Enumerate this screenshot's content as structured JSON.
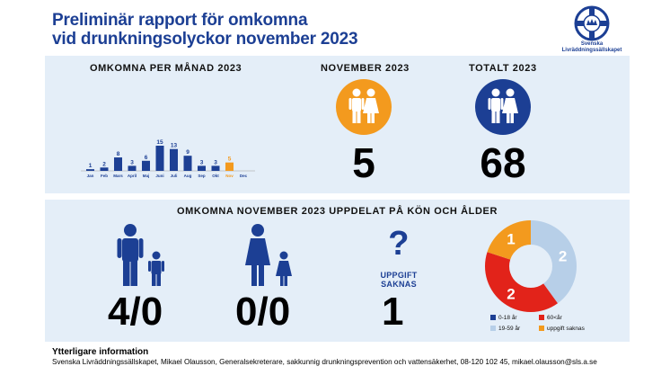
{
  "header": {
    "title_line1": "Preliminär rapport för omkomna",
    "title_line2": "vid drunkningsolyckor november 2023",
    "logo_line1": "Svenska",
    "logo_line2": "Livräddningssällskapet"
  },
  "top": {
    "monthly_heading": "OMKOMNA PER MÅNAD 2023",
    "november_heading": "NOVEMBER 2023",
    "total_heading": "TOTALT 2023",
    "november_value": "5",
    "total_value": "68"
  },
  "bottom": {
    "heading": "OMKOMNA NOVEMBER 2023 UPPDELAT PÅ KÖN OCH ÅLDER",
    "male_ratio": "4/0",
    "female_ratio": "0/0",
    "unknown_symbol": "?",
    "unknown_line1": "UPPGIFT",
    "unknown_line2": "SAKNAS",
    "unknown_value": "1"
  },
  "colors": {
    "navy": "#1c3f94",
    "orange": "#f39a1e",
    "light_blue": "#b7cfe8",
    "red": "#e2231a",
    "panel": "#e4eef8"
  },
  "chart_data": [
    {
      "type": "bar",
      "title": "OMKOMNA PER MÅNAD 2023",
      "categories": [
        "Jan",
        "Feb",
        "Mars",
        "April",
        "Maj",
        "Juni",
        "Juli",
        "Aug",
        "Sep",
        "Okt",
        "Nov",
        "Dec"
      ],
      "values": [
        1,
        2,
        8,
        3,
        6,
        15,
        13,
        9,
        3,
        3,
        5,
        null
      ],
      "highlight": "Nov",
      "colors": {
        "default": "#1c3f94",
        "highlight": "#f39a1e"
      }
    },
    {
      "type": "pie",
      "donut": true,
      "slices": [
        {
          "label": "0-18 år",
          "value": 0,
          "color": "#1c3f94"
        },
        {
          "label": "19-59 år",
          "value": 2,
          "color": "#b7cfe8"
        },
        {
          "label": "60<år",
          "value": 2,
          "color": "#e2231a"
        },
        {
          "label": "uppgift saknas",
          "value": 1,
          "color": "#f39a1e"
        }
      ]
    }
  ],
  "footer": {
    "info_title": "Ytterligare information",
    "info_text": "Svenska Livräddningssällskapet, Mikael Olausson, Generalsekreterare, sakkunnig drunkningsprevention och vattensäkerhet, 08-120 102 45, mikael.olausson@sls.a.se"
  }
}
